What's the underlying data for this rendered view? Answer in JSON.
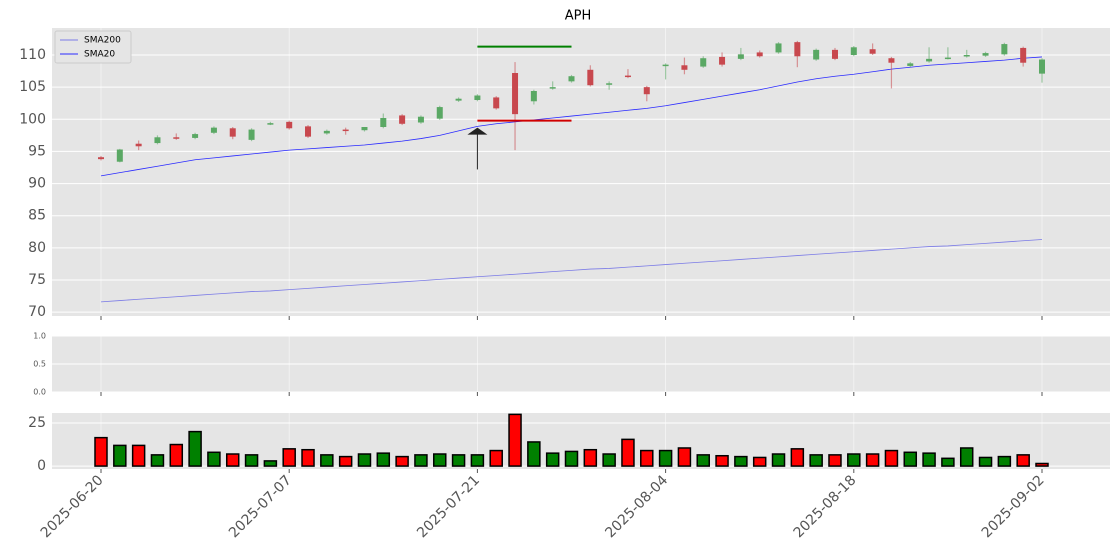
{
  "chart_data": [
    {
      "type": "candlestick",
      "title": "APH",
      "x": [
        "2025-06-20",
        "2025-06-23",
        "2025-06-24",
        "2025-06-25",
        "2025-06-26",
        "2025-06-27",
        "2025-06-30",
        "2025-07-01",
        "2025-07-02",
        "2025-07-03",
        "2025-07-07",
        "2025-07-08",
        "2025-07-09",
        "2025-07-10",
        "2025-07-11",
        "2025-07-14",
        "2025-07-15",
        "2025-07-16",
        "2025-07-17",
        "2025-07-18",
        "2025-07-21",
        "2025-07-22",
        "2025-07-23",
        "2025-07-24",
        "2025-07-25",
        "2025-07-28",
        "2025-07-29",
        "2025-07-30",
        "2025-07-31",
        "2025-08-01",
        "2025-08-04",
        "2025-08-05",
        "2025-08-06",
        "2025-08-07",
        "2025-08-08",
        "2025-08-11",
        "2025-08-12",
        "2025-08-13",
        "2025-08-14",
        "2025-08-15",
        "2025-08-18",
        "2025-08-19",
        "2025-08-20",
        "2025-08-21",
        "2025-08-22",
        "2025-08-25",
        "2025-08-26",
        "2025-08-27",
        "2025-08-28",
        "2025-08-29",
        "2025-09-02"
      ],
      "open": [
        94.1,
        93.4,
        96.2,
        96.3,
        97.2,
        97.1,
        97.9,
        98.6,
        96.8,
        99.3,
        99.6,
        98.9,
        97.8,
        98.4,
        98.3,
        98.8,
        100.6,
        99.5,
        100.1,
        102.9,
        103.0,
        103.4,
        107.2,
        102.8,
        104.8,
        105.9,
        107.7,
        105.4,
        106.8,
        105.0,
        108.3,
        108.4,
        108.2,
        109.7,
        109.4,
        110.4,
        110.4,
        112.0,
        109.3,
        110.8,
        110.0,
        110.9,
        109.5,
        108.3,
        109.0,
        109.5,
        109.8,
        109.9,
        110.1,
        111.1,
        107.1
      ],
      "high": [
        94.3,
        95.4,
        96.7,
        97.5,
        97.8,
        97.9,
        98.9,
        98.8,
        98.6,
        99.6,
        99.8,
        99.1,
        98.4,
        98.7,
        98.6,
        100.9,
        100.8,
        100.6,
        102.1,
        103.4,
        103.9,
        103.6,
        108.9,
        104.6,
        105.9,
        106.9,
        108.4,
        105.9,
        107.8,
        105.2,
        108.7,
        109.6,
        109.8,
        110.4,
        111.1,
        110.7,
        112.0,
        112.2,
        111.0,
        111.1,
        111.4,
        111.8,
        109.7,
        108.9,
        111.2,
        111.2,
        110.8,
        110.5,
        111.9,
        111.3,
        109.5
      ],
      "low": [
        93.6,
        93.3,
        95.2,
        96.1,
        96.8,
        96.9,
        97.7,
        96.9,
        96.6,
        99.1,
        98.4,
        97.1,
        97.6,
        97.6,
        98.1,
        98.6,
        99.1,
        99.3,
        99.9,
        102.7,
        102.8,
        101.5,
        95.2,
        102.3,
        104.6,
        105.7,
        105.1,
        104.6,
        106.4,
        102.8,
        106.2,
        107.0,
        108.0,
        108.2,
        109.2,
        109.6,
        110.2,
        108.1,
        109.1,
        109.2,
        109.8,
        110.0,
        104.8,
        108.1,
        108.8,
        109.3,
        109.6,
        109.7,
        109.9,
        108.2,
        105.7
      ],
      "close": [
        93.8,
        95.3,
        95.8,
        97.2,
        97.0,
        97.7,
        98.7,
        97.3,
        98.4,
        99.4,
        98.6,
        97.3,
        98.2,
        98.3,
        98.8,
        100.2,
        99.3,
        100.4,
        101.9,
        103.2,
        103.7,
        101.7,
        100.8,
        104.4,
        105.0,
        106.7,
        105.3,
        105.6,
        106.6,
        103.9,
        108.5,
        107.7,
        109.5,
        108.5,
        110.1,
        109.8,
        111.8,
        109.8,
        110.8,
        109.4,
        111.2,
        110.2,
        108.8,
        108.7,
        109.4,
        109.6,
        110.0,
        110.3,
        111.7,
        108.8,
        109.3
      ],
      "up_color": "#5aa864",
      "down_color": "#c8484e",
      "series": [
        {
          "name": "SMA200",
          "color": "#7b7be6",
          "values": [
            71.6,
            71.8,
            72.0,
            72.2,
            72.4,
            72.6,
            72.8,
            73.0,
            73.2,
            73.3,
            73.5,
            73.7,
            73.9,
            74.1,
            74.3,
            74.5,
            74.7,
            74.9,
            75.1,
            75.3,
            75.5,
            75.7,
            75.9,
            76.1,
            76.3,
            76.5,
            76.7,
            76.8,
            77.0,
            77.2,
            77.4,
            77.6,
            77.8,
            78.0,
            78.2,
            78.4,
            78.6,
            78.8,
            79.0,
            79.2,
            79.4,
            79.6,
            79.8,
            80.0,
            80.2,
            80.3,
            80.5,
            80.7,
            80.9,
            81.1,
            81.3
          ]
        },
        {
          "name": "SMA20",
          "color": "#2a2aff",
          "values": [
            91.2,
            91.7,
            92.2,
            92.7,
            93.2,
            93.7,
            94.0,
            94.3,
            94.6,
            94.9,
            95.2,
            95.4,
            95.6,
            95.8,
            96.0,
            96.3,
            96.6,
            97.0,
            97.5,
            98.2,
            98.9,
            99.3,
            99.6,
            99.9,
            100.2,
            100.5,
            100.8,
            101.1,
            101.4,
            101.7,
            102.1,
            102.6,
            103.1,
            103.6,
            104.1,
            104.6,
            105.2,
            105.8,
            106.3,
            106.7,
            107.0,
            107.4,
            107.8,
            108.1,
            108.4,
            108.6,
            108.8,
            109.0,
            109.2,
            109.5,
            109.7
          ]
        }
      ],
      "hlines": [
        {
          "y": 111.3,
          "color": "#008000",
          "x": [
            "2025-07-21",
            "2025-07-28"
          ]
        },
        {
          "y": 99.8,
          "color": "#d00000",
          "x": [
            "2025-07-21",
            "2025-07-28"
          ]
        }
      ],
      "arrow": {
        "x": "2025-07-21",
        "y": [
          92.2,
          98.7
        ]
      },
      "ylim": [
        69.4,
        114.2
      ],
      "yticks": [
        70,
        75,
        80,
        85,
        90,
        95,
        100,
        105,
        110
      ],
      "xticks": [
        "2025-06-20",
        "2025-07-07",
        "2025-07-21",
        "2025-08-04",
        "2025-08-18",
        "2025-09-02"
      ],
      "grid": true,
      "legend": "upper left"
    },
    {
      "type": "line",
      "series": [],
      "ylim": [
        0,
        1
      ],
      "yticks": [
        {
          "value": 0,
          "label": "0.0"
        },
        {
          "value": 0.5,
          "label": "0.5"
        },
        {
          "value": 1,
          "label": "1.0"
        }
      ],
      "grid": true
    },
    {
      "type": "bar",
      "values": [
        16.5,
        12,
        12,
        6.5,
        12.5,
        20,
        8,
        7,
        6.5,
        3,
        10,
        9.5,
        6.5,
        5.5,
        7,
        7.5,
        5.5,
        6.5,
        7,
        6.5,
        6.5,
        9,
        30,
        14,
        7.5,
        8.5,
        9.5,
        7,
        15.5,
        9,
        9,
        10.5,
        6.5,
        6,
        5.5,
        5,
        7,
        10,
        6.5,
        6.5,
        7,
        7,
        9,
        8,
        7.5,
        4.5,
        10.5,
        5,
        5.5,
        6.5,
        1.5
      ],
      "colors": [
        "red",
        "green",
        "red",
        "green",
        "red",
        "green",
        "green",
        "red",
        "green",
        "green",
        "red",
        "red",
        "green",
        "red",
        "green",
        "green",
        "red",
        "green",
        "green",
        "green",
        "green",
        "red",
        "red",
        "green",
        "green",
        "green",
        "red",
        "green",
        "red",
        "red",
        "green",
        "red",
        "green",
        "red",
        "green",
        "red",
        "green",
        "red",
        "green",
        "red",
        "green",
        "red",
        "red",
        "green",
        "green",
        "green",
        "green",
        "green",
        "green",
        "red",
        "red"
      ],
      "ylim": [
        -1.7,
        30.8
      ],
      "yticks": [
        0,
        25
      ],
      "grid": true
    }
  ]
}
